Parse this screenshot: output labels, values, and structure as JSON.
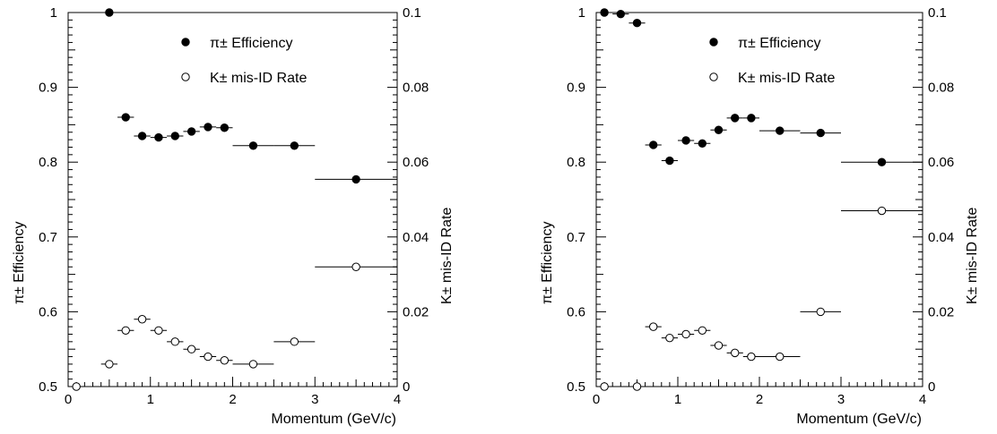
{
  "chart_data": [
    {
      "type": "scatter",
      "title": "",
      "xlabel": "Momentum (GeV/c)",
      "ylabel_left": "π± Efficiency",
      "ylabel_right": "K± mis-ID Rate",
      "xlim": [
        0,
        4
      ],
      "ylim_left": [
        0.5,
        1
      ],
      "ylim_right": [
        0,
        0.1
      ],
      "x_ticks": [
        "0",
        "1",
        "2",
        "3",
        "4"
      ],
      "y_ticks_left": [
        "0.5",
        "0.6",
        "0.7",
        "0.8",
        "0.9",
        "1"
      ],
      "y_ticks_right": [
        "0",
        "0.02",
        "0.04",
        "0.06",
        "0.08",
        "0.1"
      ],
      "legend_position": "top-right",
      "series": [
        {
          "name": "π± Efficiency",
          "marker": "filled-circle",
          "axis": "left",
          "points": [
            {
              "x": 0.5,
              "xerr": 0.1,
              "y": 1.0
            },
            {
              "x": 0.7,
              "xerr": 0.1,
              "y": 0.86
            },
            {
              "x": 0.9,
              "xerr": 0.1,
              "y": 0.835
            },
            {
              "x": 1.1,
              "xerr": 0.1,
              "y": 0.833
            },
            {
              "x": 1.3,
              "xerr": 0.1,
              "y": 0.835
            },
            {
              "x": 1.5,
              "xerr": 0.1,
              "y": 0.841
            },
            {
              "x": 1.7,
              "xerr": 0.1,
              "y": 0.847
            },
            {
              "x": 1.9,
              "xerr": 0.1,
              "y": 0.846
            },
            {
              "x": 2.25,
              "xerr": 0.25,
              "y": 0.822
            },
            {
              "x": 2.75,
              "xerr": 0.25,
              "y": 0.822
            },
            {
              "x": 3.5,
              "xerr": 0.5,
              "y": 0.777
            }
          ]
        },
        {
          "name": "K± mis-ID Rate",
          "marker": "open-circle",
          "axis": "right",
          "points": [
            {
              "x": 0.1,
              "xerr": 0.1,
              "y": 0.0
            },
            {
              "x": 0.5,
              "xerr": 0.1,
              "y": 0.006
            },
            {
              "x": 0.7,
              "xerr": 0.1,
              "y": 0.015
            },
            {
              "x": 0.9,
              "xerr": 0.1,
              "y": 0.018
            },
            {
              "x": 1.1,
              "xerr": 0.1,
              "y": 0.015
            },
            {
              "x": 1.3,
              "xerr": 0.1,
              "y": 0.012
            },
            {
              "x": 1.5,
              "xerr": 0.1,
              "y": 0.01
            },
            {
              "x": 1.7,
              "xerr": 0.1,
              "y": 0.008
            },
            {
              "x": 1.9,
              "xerr": 0.1,
              "y": 0.007
            },
            {
              "x": 2.25,
              "xerr": 0.25,
              "y": 0.006
            },
            {
              "x": 2.75,
              "xerr": 0.25,
              "y": 0.012
            },
            {
              "x": 3.5,
              "xerr": 0.5,
              "y": 0.032
            }
          ]
        }
      ]
    },
    {
      "type": "scatter",
      "title": "",
      "xlabel": "Momentum (GeV/c)",
      "ylabel_left": "π± Efficiency",
      "ylabel_right": "K± mis-ID Rate",
      "xlim": [
        0,
        4
      ],
      "ylim_left": [
        0.5,
        1
      ],
      "ylim_right": [
        0,
        0.1
      ],
      "x_ticks": [
        "0",
        "1",
        "2",
        "3",
        "4"
      ],
      "y_ticks_left": [
        "0.5",
        "0.6",
        "0.7",
        "0.8",
        "0.9",
        "1"
      ],
      "y_ticks_right": [
        "0",
        "0.02",
        "0.04",
        "0.06",
        "0.08",
        "0.1"
      ],
      "legend_position": "top-right",
      "series": [
        {
          "name": "π± Efficiency",
          "marker": "filled-circle",
          "axis": "left",
          "points": [
            {
              "x": 0.1,
              "xerr": 0.1,
              "y": 1.0
            },
            {
              "x": 0.3,
              "xerr": 0.1,
              "y": 0.998
            },
            {
              "x": 0.5,
              "xerr": 0.1,
              "y": 0.986
            },
            {
              "x": 0.7,
              "xerr": 0.1,
              "y": 0.823
            },
            {
              "x": 0.9,
              "xerr": 0.1,
              "y": 0.802
            },
            {
              "x": 1.1,
              "xerr": 0.1,
              "y": 0.829
            },
            {
              "x": 1.3,
              "xerr": 0.1,
              "y": 0.825
            },
            {
              "x": 1.5,
              "xerr": 0.1,
              "y": 0.843
            },
            {
              "x": 1.7,
              "xerr": 0.1,
              "y": 0.859
            },
            {
              "x": 1.9,
              "xerr": 0.1,
              "y": 0.859
            },
            {
              "x": 2.25,
              "xerr": 0.25,
              "y": 0.842
            },
            {
              "x": 2.75,
              "xerr": 0.25,
              "y": 0.839
            },
            {
              "x": 3.5,
              "xerr": 0.5,
              "y": 0.8
            }
          ]
        },
        {
          "name": "K± mis-ID Rate",
          "marker": "open-circle",
          "axis": "right",
          "points": [
            {
              "x": 0.1,
              "xerr": 0.0,
              "y": 0.0
            },
            {
              "x": 0.5,
              "xerr": 0.0,
              "y": 0.0
            },
            {
              "x": 0.7,
              "xerr": 0.1,
              "y": 0.016
            },
            {
              "x": 0.9,
              "xerr": 0.1,
              "y": 0.013
            },
            {
              "x": 1.1,
              "xerr": 0.1,
              "y": 0.014
            },
            {
              "x": 1.3,
              "xerr": 0.1,
              "y": 0.015
            },
            {
              "x": 1.5,
              "xerr": 0.1,
              "y": 0.011
            },
            {
              "x": 1.7,
              "xerr": 0.1,
              "y": 0.009
            },
            {
              "x": 1.9,
              "xerr": 0.1,
              "y": 0.008
            },
            {
              "x": 2.25,
              "xerr": 0.25,
              "y": 0.008
            },
            {
              "x": 2.75,
              "xerr": 0.25,
              "y": 0.02
            },
            {
              "x": 3.5,
              "xerr": 0.5,
              "y": 0.047
            }
          ]
        }
      ]
    }
  ]
}
